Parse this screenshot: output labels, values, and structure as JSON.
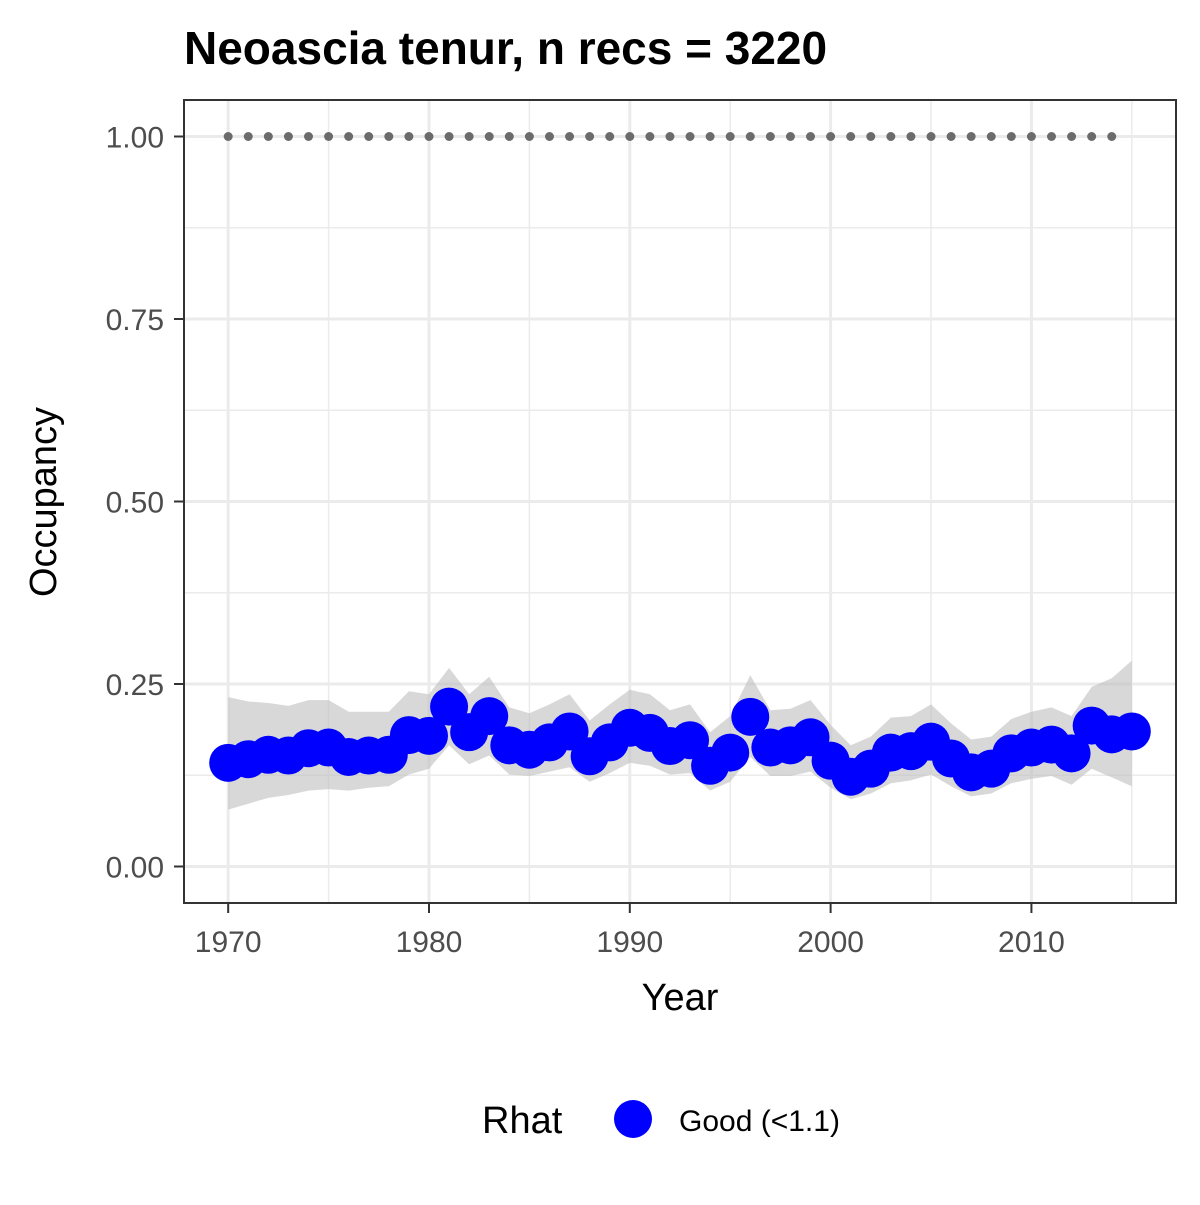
{
  "chart_data": {
    "type": "line",
    "title": "Neoascia tenur, n recs = 3220",
    "xlabel": "Year",
    "ylabel": "Occupancy",
    "xlim": [
      1967.8,
      2017.2
    ],
    "ylim": [
      -0.05,
      1.05
    ],
    "x_ticks": [
      1970,
      1980,
      1990,
      2000,
      2010
    ],
    "x_tick_labels": [
      "1970",
      "1980",
      "1990",
      "2000",
      "2010"
    ],
    "x_minor_ticks": [
      1975,
      1985,
      1995,
      2005,
      2015
    ],
    "y_ticks": [
      0,
      0.25,
      0.5,
      0.75,
      1
    ],
    "y_tick_labels": [
      "0.00",
      "0.25",
      "0.50",
      "0.75",
      "1.00"
    ],
    "y_minor_ticks": [
      0.125,
      0.375,
      0.625,
      0.875
    ],
    "grid": true,
    "colors": {
      "points": "#0000ff",
      "ribbon": "#bebebe",
      "reference_dots": "#6b6b6b",
      "grid": "#ebebeb",
      "panel_border": "#333333"
    },
    "reference": {
      "y": 1.0,
      "x": [
        1970,
        1971,
        1972,
        1973,
        1974,
        1975,
        1976,
        1977,
        1978,
        1979,
        1980,
        1981,
        1982,
        1983,
        1984,
        1985,
        1986,
        1987,
        1988,
        1989,
        1990,
        1991,
        1992,
        1993,
        1994,
        1995,
        1996,
        1997,
        1998,
        1999,
        2000,
        2001,
        2002,
        2003,
        2004,
        2005,
        2006,
        2007,
        2008,
        2009,
        2010,
        2011,
        2012,
        2013,
        2014
      ]
    },
    "series": [
      {
        "x": [
          1970,
          1971,
          1972,
          1973,
          1974,
          1975,
          1976,
          1977,
          1978,
          1979,
          1980,
          1981,
          1982,
          1983,
          1984,
          1985,
          1986,
          1987,
          1988,
          1989,
          1990,
          1991,
          1992,
          1993,
          1994,
          1995,
          1996,
          1997,
          1998,
          1999,
          2000,
          2001,
          2002,
          2003,
          2004,
          2005,
          2006,
          2007,
          2008,
          2009,
          2010,
          2011,
          2012,
          2013,
          2014,
          2015
        ],
        "y": [
          0.142,
          0.147,
          0.153,
          0.152,
          0.162,
          0.163,
          0.15,
          0.152,
          0.153,
          0.18,
          0.179,
          0.219,
          0.184,
          0.206,
          0.166,
          0.16,
          0.17,
          0.185,
          0.151,
          0.17,
          0.19,
          0.183,
          0.165,
          0.173,
          0.138,
          0.156,
          0.205,
          0.163,
          0.166,
          0.177,
          0.145,
          0.123,
          0.134,
          0.156,
          0.158,
          0.171,
          0.148,
          0.129,
          0.134,
          0.155,
          0.163,
          0.167,
          0.155,
          0.193,
          0.181,
          0.185
        ],
        "lower": [
          0.078,
          0.086,
          0.094,
          0.098,
          0.104,
          0.106,
          0.104,
          0.108,
          0.11,
          0.126,
          0.134,
          0.166,
          0.14,
          0.152,
          0.126,
          0.124,
          0.13,
          0.136,
          0.116,
          0.128,
          0.142,
          0.138,
          0.126,
          0.128,
          0.104,
          0.116,
          0.15,
          0.124,
          0.124,
          0.13,
          0.108,
          0.092,
          0.1,
          0.114,
          0.118,
          0.126,
          0.11,
          0.096,
          0.1,
          0.114,
          0.12,
          0.124,
          0.112,
          0.134,
          0.122,
          0.11
        ],
        "upper": [
          0.232,
          0.226,
          0.224,
          0.22,
          0.228,
          0.228,
          0.212,
          0.212,
          0.212,
          0.24,
          0.236,
          0.272,
          0.236,
          0.26,
          0.218,
          0.21,
          0.222,
          0.236,
          0.2,
          0.222,
          0.242,
          0.236,
          0.214,
          0.222,
          0.184,
          0.206,
          0.262,
          0.214,
          0.216,
          0.228,
          0.194,
          0.166,
          0.178,
          0.204,
          0.206,
          0.222,
          0.196,
          0.174,
          0.178,
          0.202,
          0.212,
          0.218,
          0.206,
          0.246,
          0.258,
          0.282
        ]
      }
    ],
    "legend": {
      "position": "bottom",
      "title": "Rhat",
      "entries": [
        "Good (<1.1)"
      ]
    }
  }
}
